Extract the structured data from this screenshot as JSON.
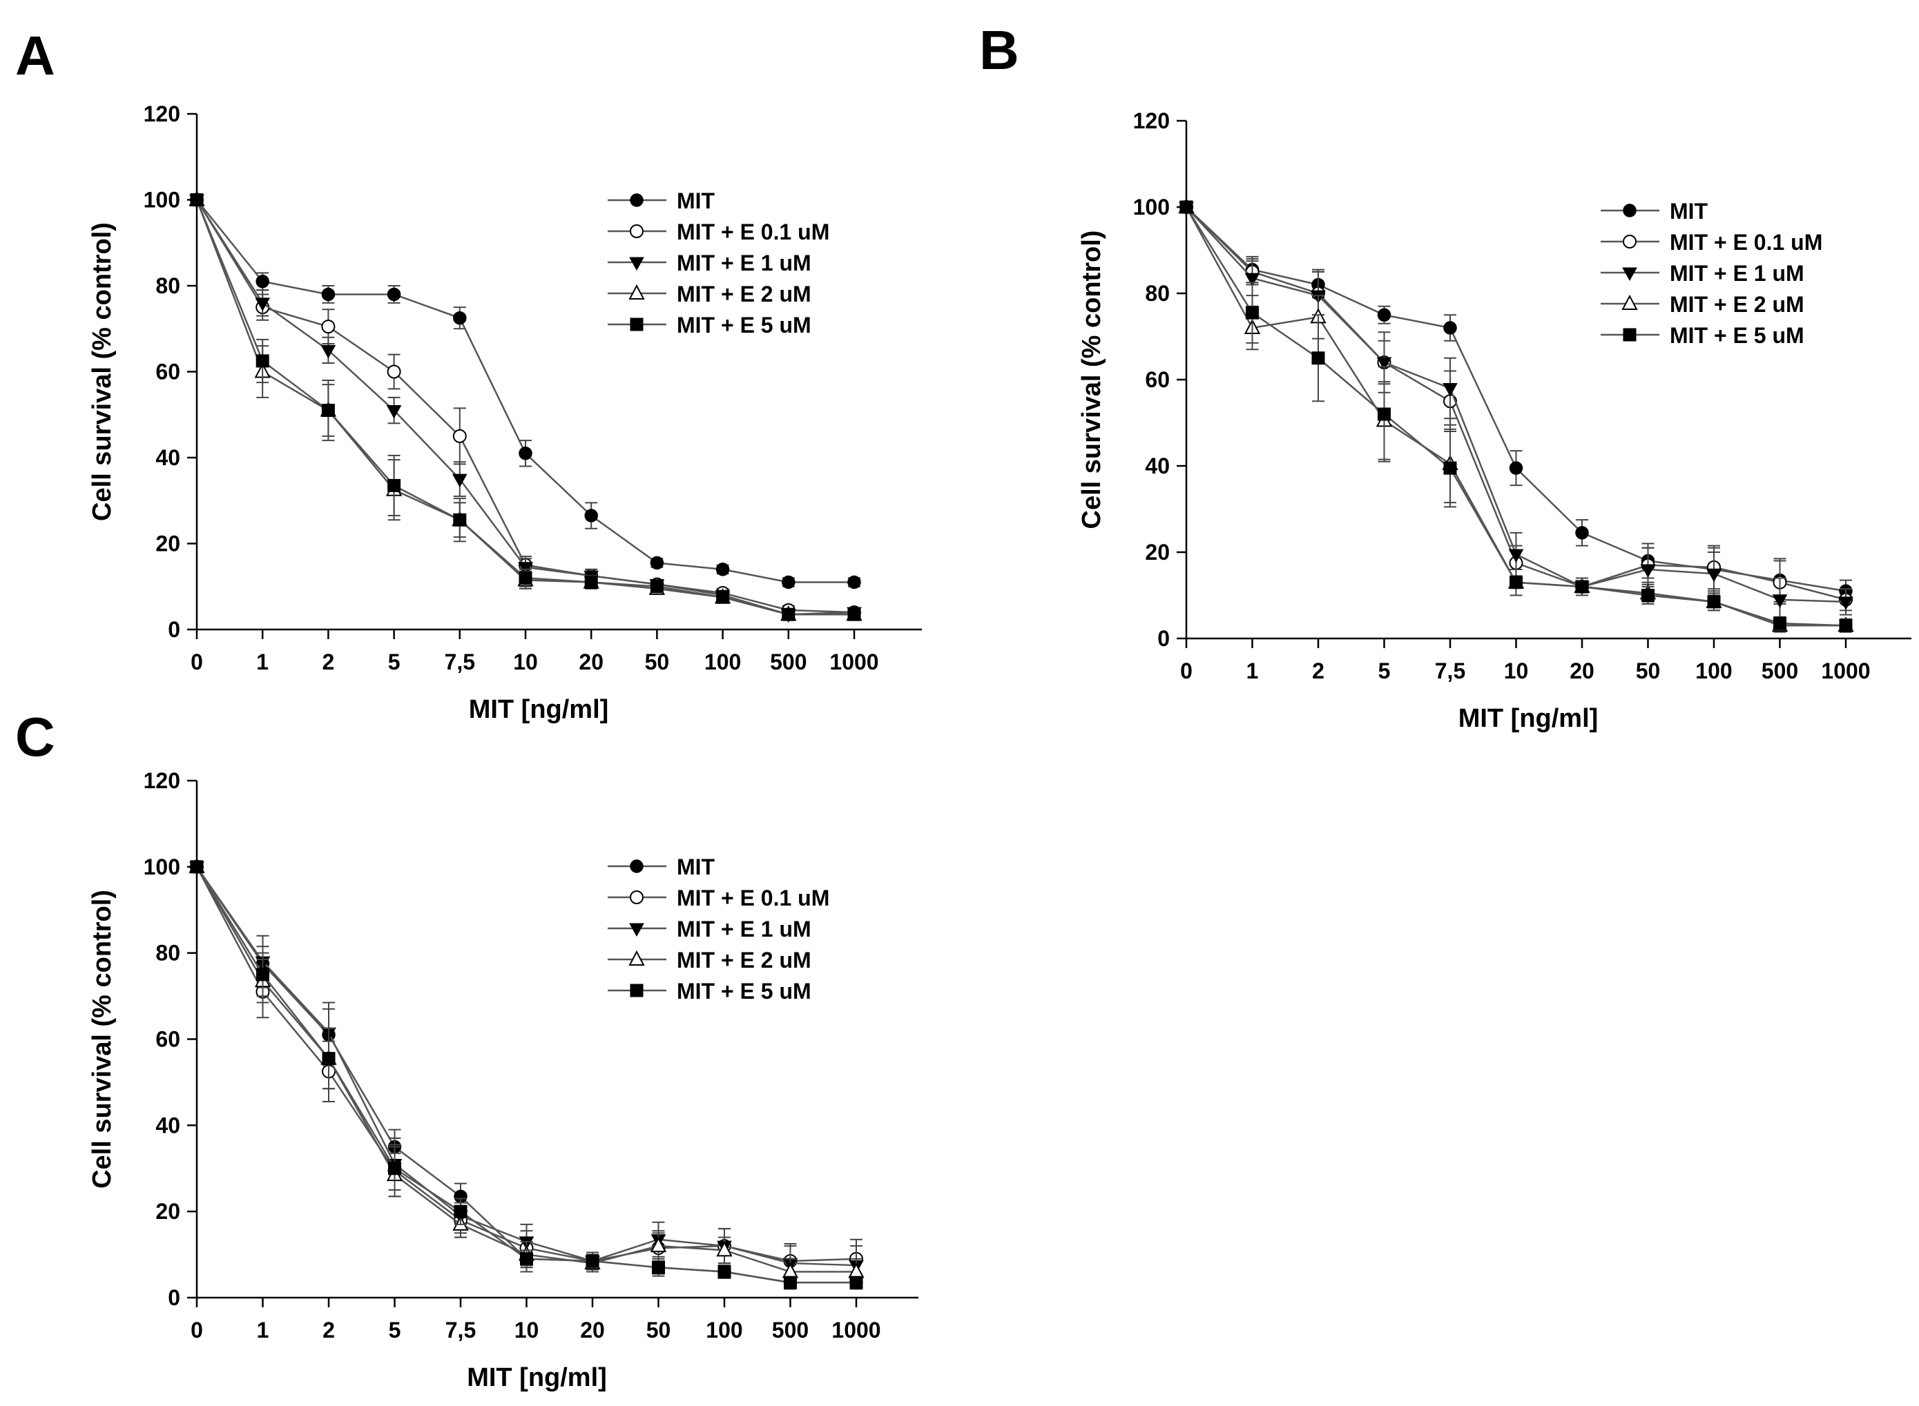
{
  "chart_data": [
    {
      "panel": "A",
      "type": "line",
      "xlabel": "MIT [ng/ml]",
      "ylabel": "Cell survival (% control)",
      "categories": [
        "0",
        "1",
        "2",
        "5",
        "7,5",
        "10",
        "20",
        "50",
        "100",
        "500",
        "1000"
      ],
      "yticks": [
        "0",
        "20",
        "40",
        "60",
        "80",
        "100",
        "120"
      ],
      "ylim": [
        0,
        120
      ],
      "grid": false,
      "legend_position": "top-right",
      "series": [
        {
          "name": "MIT",
          "marker": "filled-circle",
          "values": [
            100,
            81,
            78,
            78,
            72.5,
            41,
            26.5,
            15.5,
            14,
            11,
            11
          ],
          "errors": [
            0,
            2,
            2,
            2,
            2.5,
            3,
            3,
            1,
            1,
            1,
            1
          ]
        },
        {
          "name": "MIT + E 0.1 uM",
          "marker": "open-circle",
          "values": [
            100,
            75,
            70.5,
            60,
            45,
            15,
            12.5,
            10.5,
            8.5,
            4.5,
            4
          ],
          "errors": [
            0,
            3,
            4,
            4,
            6.5,
            2,
            1.5,
            1,
            1,
            1,
            1
          ]
        },
        {
          "name": "MIT + E 1 uM",
          "marker": "filled-triangle-down",
          "values": [
            100,
            76,
            65,
            51,
            35,
            14.5,
            12.5,
            10.5,
            8,
            3.5,
            4
          ],
          "errors": [
            0,
            3,
            3,
            3,
            4,
            2,
            1.5,
            1,
            1,
            1,
            1
          ]
        },
        {
          "name": "MIT + E 2 uM",
          "marker": "open-triangle-up",
          "values": [
            100,
            60,
            51,
            32.5,
            25.5,
            11.5,
            11,
            9.5,
            7.5,
            3.5,
            3.5
          ],
          "errors": [
            0,
            6,
            7,
            7,
            4,
            2,
            1.5,
            1,
            1,
            1,
            1
          ]
        },
        {
          "name": "MIT + E 5 uM",
          "marker": "filled-square",
          "values": [
            100,
            62.5,
            51,
            33.5,
            25.5,
            12,
            11,
            10,
            7.5,
            3.5,
            3.5
          ],
          "errors": [
            0,
            5,
            6,
            7,
            5,
            2,
            1.5,
            1,
            1,
            1,
            1
          ]
        }
      ]
    },
    {
      "panel": "B",
      "type": "line",
      "xlabel": "MIT [ng/ml]",
      "ylabel": "Cell survival (% control)",
      "categories": [
        "0",
        "1",
        "2",
        "5",
        "7,5",
        "10",
        "20",
        "50",
        "100",
        "500",
        "1000"
      ],
      "yticks": [
        "0",
        "20",
        "40",
        "60",
        "80",
        "100",
        "120"
      ],
      "ylim": [
        0,
        120
      ],
      "grid": false,
      "legend_position": "top-right",
      "series": [
        {
          "name": "MIT",
          "marker": "filled-circle",
          "values": [
            100,
            85.5,
            82,
            75,
            72,
            39.5,
            24.5,
            18,
            16,
            13.5,
            11
          ],
          "errors": [
            0,
            3,
            3,
            2,
            3,
            4,
            3,
            4,
            5,
            5,
            2.5
          ]
        },
        {
          "name": "MIT + E 0.1 uM",
          "marker": "open-circle",
          "values": [
            100,
            85,
            80,
            64,
            55,
            17.5,
            12,
            17,
            16.5,
            13,
            9
          ],
          "errors": [
            0,
            3,
            5,
            5,
            7,
            4,
            2,
            4,
            5,
            5,
            2.5
          ]
        },
        {
          "name": "MIT + E 1 uM",
          "marker": "filled-triangle-down",
          "values": [
            100,
            83.5,
            79.5,
            64,
            58,
            19.5,
            12,
            16,
            15,
            9,
            8.5
          ],
          "errors": [
            0,
            4,
            6,
            7,
            7,
            5,
            2,
            5,
            5,
            5,
            3
          ]
        },
        {
          "name": "MIT + E 2 uM",
          "marker": "open-triangle-up",
          "values": [
            100,
            72,
            74.5,
            50.5,
            40.5,
            13,
            12,
            10.5,
            8.5,
            3,
            3
          ],
          "errors": [
            0,
            5,
            5,
            9,
            9,
            3,
            2,
            2,
            2,
            1.5,
            1.5
          ]
        },
        {
          "name": "MIT + E 5 uM",
          "marker": "filled-square",
          "values": [
            100,
            75.5,
            65,
            52,
            39.5,
            13,
            12,
            10,
            8.5,
            3.5,
            3
          ],
          "errors": [
            0,
            7,
            10,
            11,
            9,
            3,
            2,
            2,
            2,
            1.5,
            1.5
          ]
        }
      ]
    },
    {
      "panel": "C",
      "type": "line",
      "xlabel": "MIT [ng/ml]",
      "ylabel": "Cell survival (% control)",
      "categories": [
        "0",
        "1",
        "2",
        "5",
        "7,5",
        "10",
        "20",
        "50",
        "100",
        "500",
        "1000"
      ],
      "yticks": [
        "0",
        "20",
        "40",
        "60",
        "80",
        "100",
        "120"
      ],
      "ylim": [
        0,
        120
      ],
      "grid": false,
      "legend_position": "top-right",
      "series": [
        {
          "name": "MIT",
          "marker": "filled-circle",
          "values": [
            100,
            77.5,
            61,
            35,
            23.5,
            9,
            8.5,
            7,
            6,
            3.5,
            3.5
          ],
          "errors": [
            0,
            4,
            6,
            4,
            3,
            3,
            2,
            2,
            1.5,
            1.5,
            1.5
          ]
        },
        {
          "name": "MIT + E 0.1 uM",
          "marker": "open-circle",
          "values": [
            100,
            71,
            52.5,
            29.5,
            18,
            11.5,
            8.5,
            11.5,
            12,
            8.5,
            9
          ],
          "errors": [
            0,
            6,
            7,
            6,
            4,
            4,
            2,
            4,
            4,
            4,
            4.5
          ]
        },
        {
          "name": "MIT + E 1 uM",
          "marker": "filled-triangle-down",
          "values": [
            100,
            78,
            61.5,
            31,
            19,
            13,
            8.5,
            13.5,
            12,
            8,
            7.5
          ],
          "errors": [
            0,
            6,
            7,
            6,
            4,
            4,
            2,
            4,
            4,
            4,
            4.5
          ]
        },
        {
          "name": "MIT + E 2 uM",
          "marker": "open-triangle-up",
          "values": [
            100,
            73.5,
            55.5,
            28.5,
            17,
            10,
            8,
            12,
            11,
            6,
            6
          ],
          "errors": [
            0,
            5,
            7,
            5,
            3,
            3,
            2,
            3,
            3,
            3,
            3
          ]
        },
        {
          "name": "MIT + E 5 uM",
          "marker": "filled-square",
          "values": [
            100,
            75,
            55.5,
            30,
            20,
            9,
            8.5,
            7,
            6,
            3.5,
            3.5
          ],
          "errors": [
            0,
            5,
            7,
            5,
            3,
            2,
            1.5,
            1.5,
            1.5,
            1,
            1
          ]
        }
      ]
    }
  ]
}
